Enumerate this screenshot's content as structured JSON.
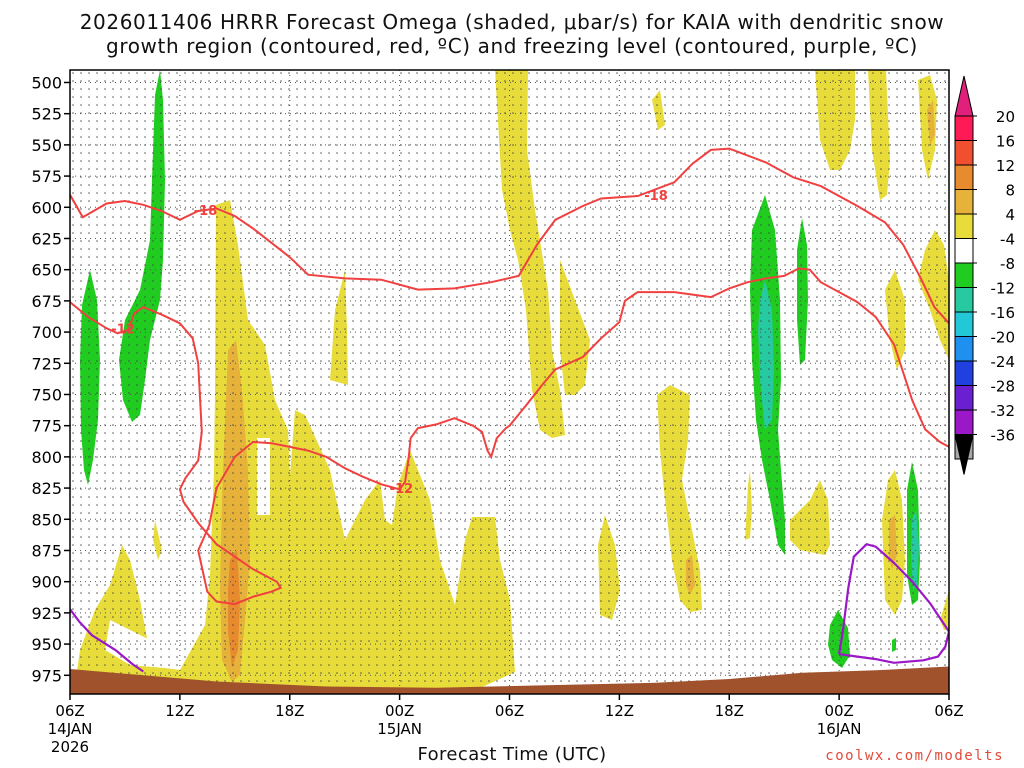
{
  "title_line1": "2026011406 HRRR Forecast Omega (shaded, μbar/s) for KAIA with dendritic snow",
  "title_line2": "growth region (contoured, red, ºC) and freezing level (contoured, purple, ºC)",
  "xlabel": "Forecast Time (UTC)",
  "credit": "coolwx.com/modelts",
  "colors": {
    "omega_pos_4_8": "#e8dc3a",
    "omega_pos_8_12": "#e6b23a",
    "omega_pos_12_16": "#e88a2e",
    "omega_neg_4_8": "#1fcc1f",
    "omega_neg_8_12": "#26c9a0",
    "dgz_contour": "#f04040",
    "freezing_contour": "#9a18c8",
    "ground": "#a0522d"
  },
  "chart_data": {
    "type": "heatmap",
    "x_ticks": [
      {
        "hour": 0,
        "label": "06Z",
        "sub1": "14JAN",
        "sub2": "2026"
      },
      {
        "hour": 6,
        "label": "12Z",
        "sub1": "",
        "sub2": ""
      },
      {
        "hour": 12,
        "label": "18Z",
        "sub1": "",
        "sub2": ""
      },
      {
        "hour": 18,
        "label": "00Z",
        "sub1": "15JAN",
        "sub2": ""
      },
      {
        "hour": 24,
        "label": "06Z",
        "sub1": "",
        "sub2": ""
      },
      {
        "hour": 30,
        "label": "12Z",
        "sub1": "",
        "sub2": ""
      },
      {
        "hour": 36,
        "label": "18Z",
        "sub1": "",
        "sub2": ""
      },
      {
        "hour": 42,
        "label": "00Z",
        "sub1": "16JAN",
        "sub2": ""
      },
      {
        "hour": 48,
        "label": "06Z",
        "sub1": "",
        "sub2": ""
      }
    ],
    "xlim": [
      0,
      48
    ],
    "y_ticks": [
      500,
      525,
      550,
      575,
      600,
      625,
      650,
      675,
      700,
      725,
      750,
      775,
      800,
      825,
      850,
      875,
      900,
      925,
      950,
      975
    ],
    "ylim": [
      490,
      990
    ],
    "colorbar": {
      "labels": [
        20,
        16,
        12,
        8,
        4,
        -4,
        -8,
        -12,
        -16,
        -20,
        -24,
        -28,
        -32,
        -36
      ],
      "colors": [
        "#ff1a55",
        "#f05030",
        "#e88a2e",
        "#e6b23a",
        "#e8dc3a",
        "#ffffff",
        "#1fcc1f",
        "#26c9a0",
        "#22c8d8",
        "#1e90f0",
        "#2040e0",
        "#6a1fd0",
        "#9a18c8",
        "#a8a8a8"
      ],
      "top_arrow": "#e0207a",
      "bottom_arrow": "#000000"
    },
    "contour_labels": [
      {
        "text": "-18",
        "hour": 7.4,
        "p": 602
      },
      {
        "text": "-12",
        "hour": 2.9,
        "p": 697
      },
      {
        "text": "-12",
        "hour": 18.1,
        "p": 825
      },
      {
        "text": "-18",
        "hour": 32.0,
        "p": 590
      }
    ],
    "dgz_upper_18": [
      [
        0,
        590
      ],
      [
        0.7,
        608
      ],
      [
        2,
        597
      ],
      [
        3,
        595
      ],
      [
        4,
        598
      ],
      [
        5,
        603
      ],
      [
        6,
        610
      ],
      [
        7,
        603
      ],
      [
        8,
        601
      ],
      [
        9,
        607
      ],
      [
        10,
        617
      ],
      [
        12,
        640
      ],
      [
        13,
        654
      ],
      [
        15,
        657
      ],
      [
        17,
        658
      ],
      [
        19,
        666
      ],
      [
        21,
        665
      ],
      [
        23,
        660
      ],
      [
        24.5,
        655
      ],
      [
        25.5,
        630
      ],
      [
        26.5,
        610
      ],
      [
        28,
        599
      ],
      [
        29,
        593
      ],
      [
        31,
        591
      ],
      [
        33,
        580
      ],
      [
        34,
        565
      ],
      [
        35,
        554
      ],
      [
        36,
        553
      ],
      [
        38,
        564
      ],
      [
        39.5,
        576
      ],
      [
        41,
        583
      ],
      [
        43,
        599
      ],
      [
        44.5,
        612
      ],
      [
        45.5,
        630
      ],
      [
        46.5,
        658
      ],
      [
        47.2,
        680
      ],
      [
        48,
        693
      ]
    ],
    "dgz_upper_12": [
      [
        0,
        676
      ],
      [
        1,
        688
      ],
      [
        2,
        697
      ],
      [
        2.6,
        701
      ],
      [
        3.2,
        698
      ],
      [
        3.5,
        685
      ],
      [
        4,
        680
      ],
      [
        5,
        686
      ],
      [
        6,
        693
      ],
      [
        6.7,
        705
      ],
      [
        7,
        725
      ],
      [
        7.2,
        780
      ],
      [
        7,
        803
      ],
      [
        6.3,
        817
      ],
      [
        6,
        826
      ],
      [
        6.2,
        836
      ],
      [
        7,
        853
      ],
      [
        8,
        870
      ],
      [
        9,
        880
      ],
      [
        10,
        890
      ],
      [
        11.3,
        900
      ],
      [
        11.5,
        905
      ],
      [
        11,
        908
      ],
      [
        10,
        912
      ],
      [
        9.5,
        915
      ],
      [
        9,
        918
      ],
      [
        8,
        916
      ],
      [
        7.5,
        908
      ],
      [
        7.3,
        895
      ],
      [
        7,
        875
      ],
      [
        7.6,
        855
      ],
      [
        8,
        825
      ],
      [
        9,
        800
      ],
      [
        10,
        788
      ],
      [
        11,
        789
      ],
      [
        12,
        792
      ],
      [
        13,
        795
      ],
      [
        14,
        800
      ],
      [
        15,
        809
      ],
      [
        16,
        816
      ],
      [
        17,
        822
      ],
      [
        18,
        826
      ],
      [
        18.3,
        820
      ],
      [
        18.5,
        800
      ],
      [
        18.6,
        785
      ],
      [
        19,
        777
      ],
      [
        20,
        774
      ],
      [
        21,
        769
      ],
      [
        22,
        775
      ],
      [
        22.5,
        780
      ],
      [
        22.8,
        795
      ],
      [
        23,
        800
      ],
      [
        23.3,
        785
      ],
      [
        23.8,
        777
      ],
      [
        24,
        775
      ],
      [
        25,
        757
      ],
      [
        25.8,
        742
      ],
      [
        26.5,
        730
      ],
      [
        28,
        720
      ],
      [
        29,
        705
      ],
      [
        30,
        692
      ],
      [
        30.3,
        675
      ],
      [
        31,
        668
      ],
      [
        32,
        668
      ],
      [
        33,
        668
      ],
      [
        34,
        670
      ],
      [
        35,
        672
      ],
      [
        36,
        665
      ],
      [
        37,
        660
      ],
      [
        38,
        657
      ],
      [
        39,
        655
      ],
      [
        39.8,
        649
      ],
      [
        40.4,
        650
      ],
      [
        41,
        660
      ],
      [
        42,
        668
      ],
      [
        43,
        676
      ],
      [
        44,
        688
      ],
      [
        45,
        710
      ],
      [
        46,
        755
      ],
      [
        46.7,
        778
      ],
      [
        47.5,
        788
      ],
      [
        48,
        792
      ]
    ],
    "freezing_0": [
      [
        0,
        922
      ],
      [
        0.5,
        932
      ],
      [
        1.2,
        943
      ],
      [
        2.5,
        955
      ],
      [
        3.4,
        966
      ],
      [
        4,
        972
      ]
    ],
    "freezing_0b": [
      [
        42,
        958
      ],
      [
        42.2,
        940
      ],
      [
        42.5,
        905
      ],
      [
        42.8,
        880
      ],
      [
        43.5,
        870
      ],
      [
        44,
        872
      ],
      [
        45,
        885
      ],
      [
        46,
        900
      ],
      [
        47,
        918
      ],
      [
        48,
        940
      ],
      [
        47.8,
        952
      ],
      [
        47.4,
        960
      ],
      [
        46.6,
        963
      ],
      [
        45,
        965
      ],
      [
        44,
        962
      ],
      [
        43,
        960
      ],
      [
        42,
        958
      ]
    ],
    "ground_profile": [
      [
        0,
        970
      ],
      [
        4,
        975
      ],
      [
        8,
        980
      ],
      [
        14,
        984
      ],
      [
        20,
        985
      ],
      [
        26,
        983
      ],
      [
        32,
        981
      ],
      [
        36,
        978
      ],
      [
        40,
        973
      ],
      [
        44,
        971
      ],
      [
        48,
        968
      ]
    ]
  }
}
